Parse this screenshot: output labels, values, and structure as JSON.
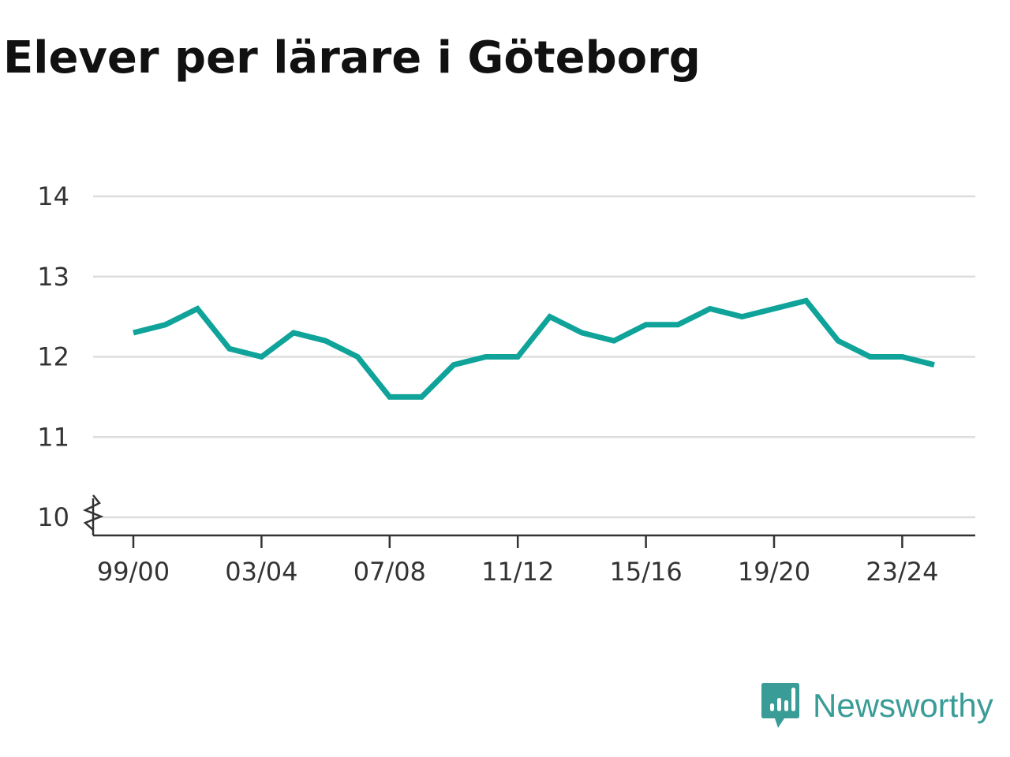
{
  "chart_data": {
    "type": "line",
    "title": "Elever per lärare i Göteborg",
    "xlabel": "",
    "ylabel": "",
    "x": [
      "99/00",
      "00/01",
      "01/02",
      "02/03",
      "03/04",
      "04/05",
      "05/06",
      "06/07",
      "07/08",
      "08/09",
      "09/10",
      "10/11",
      "11/12",
      "12/13",
      "13/14",
      "14/15",
      "15/16",
      "16/17",
      "17/18",
      "18/19",
      "19/20",
      "20/21",
      "21/22",
      "22/23",
      "23/24",
      "24/25"
    ],
    "series": [
      {
        "values": [
          12.3,
          12.4,
          12.6,
          12.1,
          12.0,
          12.3,
          12.2,
          12.0,
          11.5,
          11.5,
          11.9,
          12.0,
          12.0,
          12.5,
          12.3,
          12.2,
          12.4,
          12.4,
          12.6,
          12.5,
          12.6,
          12.7,
          12.2,
          12.0,
          12.0,
          11.9
        ],
        "color": "#0fa39a"
      }
    ],
    "ylim": [
      10,
      14
    ],
    "yticks": [
      "10",
      "11",
      "12",
      "13",
      "14"
    ],
    "xticks": [
      "99/00",
      "03/04",
      "07/08",
      "11/12",
      "15/16",
      "19/20",
      "23/24"
    ],
    "axis_break": true,
    "grid": true,
    "legend": "none"
  },
  "brand": {
    "name": "Newsworthy",
    "color": "#3a9c96",
    "icon": "newsworthy-logo-icon"
  }
}
